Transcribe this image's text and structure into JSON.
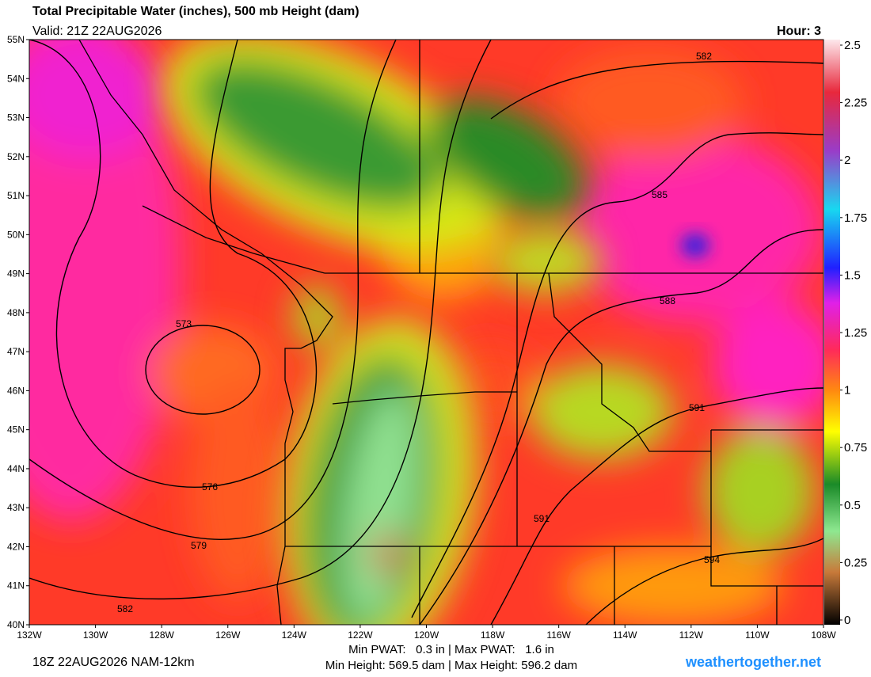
{
  "header": {
    "title": "Total Precipitable Water (inches), 500 mb Height (dam)",
    "valid": "Valid: 21Z 22AUG2026",
    "hour": "Hour: 3"
  },
  "lat_labels": [
    "55N",
    "54N",
    "53N",
    "52N",
    "51N",
    "50N",
    "49N",
    "48N",
    "47N",
    "46N",
    "45N",
    "44N",
    "43N",
    "42N",
    "41N",
    "40N"
  ],
  "lon_labels": [
    "132W",
    "130W",
    "128W",
    "126W",
    "124W",
    "122W",
    "120W",
    "118W",
    "116W",
    "114W",
    "112W",
    "110W",
    "108W"
  ],
  "colorbar": {
    "ticks": [
      "2.5",
      "2.25",
      "2",
      "1.75",
      "1.5",
      "1.25",
      "1",
      "0.75",
      "0.5",
      "0.25",
      "0"
    ]
  },
  "contour_labels": [
    "573",
    "576",
    "579",
    "582",
    "582",
    "585",
    "588",
    "591",
    "591",
    "594"
  ],
  "footer": {
    "run": "18Z 22AUG2026 NAM-12km",
    "pwat": "Min PWAT:   0.3 in | Max PWAT:   1.6 in",
    "height": "Min Height: 569.5 dam | Max Height: 596.2 dam",
    "site": "weathertogether.net"
  }
}
